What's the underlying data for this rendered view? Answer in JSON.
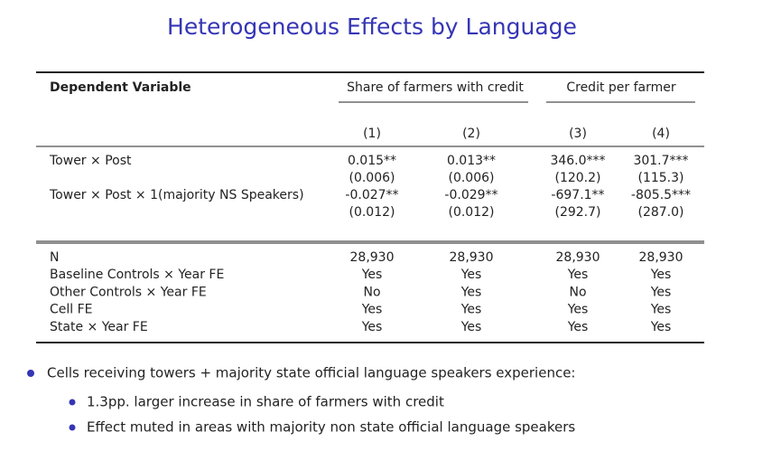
{
  "title": "Heterogeneous Effects by Language",
  "table": {
    "header": {
      "dependent": "Dependent Variable",
      "groups": [
        "Share of farmers with credit",
        "Credit per farmer"
      ],
      "columns": [
        "(1)",
        "(2)",
        "(3)",
        "(4)"
      ]
    },
    "coef_rows": [
      {
        "label": "Tower × Post",
        "estimates": [
          "0.015**",
          "0.013**",
          "346.0***",
          "301.7***"
        ],
        "se": [
          "(0.006)",
          "(0.006)",
          "(120.2)",
          "(115.3)"
        ]
      },
      {
        "label": "Tower × Post × 1(majority NS Speakers)",
        "estimates": [
          "-0.027**",
          "-0.029**",
          "-697.1**",
          "-805.5***"
        ],
        "se": [
          "(0.012)",
          "(0.012)",
          "(292.7)",
          "(287.0)"
        ]
      }
    ],
    "stat_rows": [
      {
        "label": "N",
        "values": [
          "28,930",
          "28,930",
          "28,930",
          "28,930"
        ]
      },
      {
        "label": "Baseline Controls × Year FE",
        "values": [
          "Yes",
          "Yes",
          "Yes",
          "Yes"
        ]
      },
      {
        "label": "Other Controls × Year FE",
        "values": [
          "No",
          "Yes",
          "No",
          "Yes"
        ]
      },
      {
        "label": "Cell FE",
        "values": [
          "Yes",
          "Yes",
          "Yes",
          "Yes"
        ]
      },
      {
        "label": "State × Year FE",
        "values": [
          "Yes",
          "Yes",
          "Yes",
          "Yes"
        ]
      }
    ]
  },
  "bullets": [
    {
      "text": "Cells receiving towers + majority state official language speakers experience:",
      "sub": [
        "1.3pp. larger increase in share of farmers with credit",
        "Effect muted in areas with majority non state official language speakers"
      ]
    }
  ]
}
